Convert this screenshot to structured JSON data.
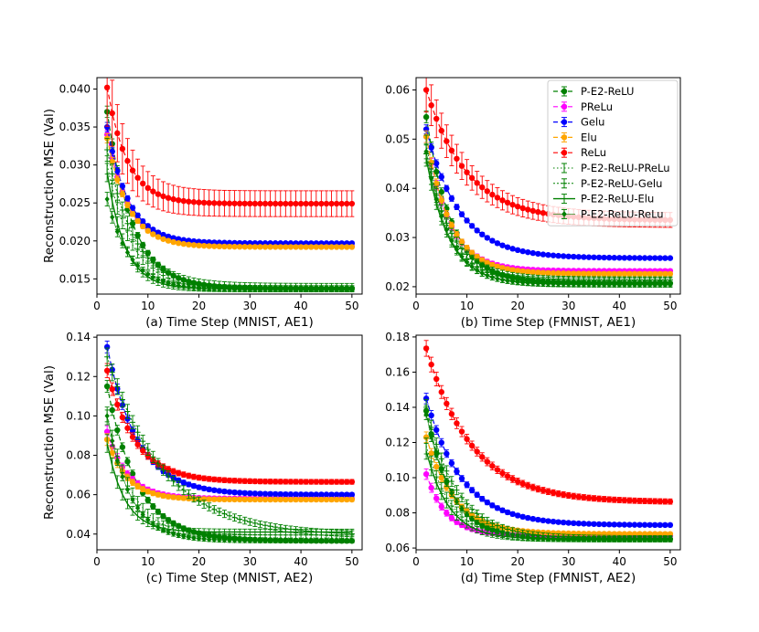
{
  "colors": {
    "P-E2-ReLU": "#008000",
    "PReLu": "#ff00ff",
    "Gelu": "#0000ff",
    "Elu": "#ffa500",
    "ReLu": "#ff0000",
    "P-E2-ReLU-PReLu": "#008000",
    "P-E2-ReLU-Gelu": "#008000",
    "P-E2-ReLU-Elu": "#008000",
    "P-E2-ReLU-ReLu": "#008000"
  },
  "legend": {
    "placement": "top-right of panel (b)",
    "entries": [
      "P-E2-ReLU",
      "PReLu",
      "Gelu",
      "Elu",
      "ReLu",
      "P-E2-ReLU-PReLu",
      "P-E2-ReLU-Gelu",
      "P-E2-ReLU-Elu",
      "P-E2-ReLU-ReLu"
    ]
  },
  "chart_data": [
    {
      "type": "line",
      "xlabel": "(a) Time Step (MNIST, AE1)",
      "ylabel": "Reconstruction MSE (Val)",
      "xlim": [
        0,
        52
      ],
      "ylim": [
        0.013,
        0.0415
      ],
      "xticks": [
        "0",
        "10",
        "20",
        "30",
        "40",
        "50"
      ],
      "yticks": [
        "0.015",
        "0.020",
        "0.025",
        "0.030",
        "0.035",
        "0.040"
      ],
      "xtick_values": [
        0,
        10,
        20,
        30,
        40,
        50
      ],
      "ytick_values": [
        0.015,
        0.02,
        0.025,
        0.03,
        0.035,
        0.04
      ],
      "x_range": [
        2,
        50
      ],
      "series": [
        {
          "name": "P-E2-ReLU",
          "start": 0.037,
          "end": 0.0137,
          "tau": 5.0,
          "err": 0.00025
        },
        {
          "name": "PReLu",
          "start": 0.034,
          "end": 0.0193,
          "tau": 4.2,
          "err": 0.0002
        },
        {
          "name": "Gelu",
          "start": 0.035,
          "end": 0.0197,
          "tau": 4.2,
          "err": 0.0002
        },
        {
          "name": "Elu",
          "start": 0.0335,
          "end": 0.0192,
          "tau": 4.2,
          "err": 0.0002
        },
        {
          "name": "ReLu",
          "start": 0.0402,
          "end": 0.0249,
          "tau": 4.0,
          "err": 0.0017
        },
        {
          "name": "P-E2-ReLU-PReLu",
          "start": 0.03,
          "end": 0.0137,
          "tau": 4.8,
          "err": 0.0004
        },
        {
          "name": "P-E2-ReLU-Gelu",
          "start": 0.032,
          "end": 0.0139,
          "tau": 5.2,
          "err": 0.0005
        },
        {
          "name": "P-E2-ReLU-Elu",
          "start": 0.029,
          "end": 0.0137,
          "tau": 3.5,
          "err": 0.0004
        },
        {
          "name": "P-E2-ReLU-ReLu",
          "start": 0.0255,
          "end": 0.0136,
          "tau": 4.5,
          "err": 0.0003
        }
      ]
    },
    {
      "type": "line",
      "xlabel": "(b) Time Step (FMNIST, AE1)",
      "ylabel": "",
      "xlim": [
        0,
        52
      ],
      "ylim": [
        0.0185,
        0.0625
      ],
      "xticks": [
        "0",
        "10",
        "20",
        "30",
        "40",
        "50"
      ],
      "yticks": [
        "0.02",
        "0.03",
        "0.04",
        "0.05",
        "0.06"
      ],
      "xtick_values": [
        0,
        10,
        20,
        30,
        40,
        50
      ],
      "ytick_values": [
        0.02,
        0.03,
        0.04,
        0.05,
        0.06
      ],
      "x_range": [
        2,
        50
      ],
      "series": [
        {
          "name": "P-E2-ReLU",
          "start": 0.0545,
          "end": 0.0207,
          "tau": 5.0,
          "err": 0.0004
        },
        {
          "name": "PReLu",
          "start": 0.0505,
          "end": 0.0232,
          "tau": 4.5,
          "err": 0.0004
        },
        {
          "name": "Gelu",
          "start": 0.052,
          "end": 0.0258,
          "tau": 6.5,
          "err": 0.0003
        },
        {
          "name": "Elu",
          "start": 0.0505,
          "end": 0.0226,
          "tau": 4.8,
          "err": 0.0004
        },
        {
          "name": "ReLu",
          "start": 0.06,
          "end": 0.0335,
          "tau": 8.0,
          "err": 0.0015
        },
        {
          "name": "P-E2-ReLU-PReLu",
          "start": 0.049,
          "end": 0.0212,
          "tau": 4.5,
          "err": 0.0006
        },
        {
          "name": "P-E2-ReLU-Gelu",
          "start": 0.047,
          "end": 0.0214,
          "tau": 5.0,
          "err": 0.0006
        },
        {
          "name": "P-E2-ReLU-Elu",
          "start": 0.046,
          "end": 0.0205,
          "tau": 4.5,
          "err": 0.0005
        },
        {
          "name": "P-E2-ReLU-ReLu",
          "start": 0.0475,
          "end": 0.0204,
          "tau": 4.5,
          "err": 0.0005
        }
      ]
    },
    {
      "type": "line",
      "xlabel": "(c) Time Step (MNIST, AE2)",
      "ylabel": "Reconstruction MSE (Val)",
      "xlim": [
        0,
        52
      ],
      "ylim": [
        0.032,
        0.141
      ],
      "xticks": [
        "0",
        "10",
        "20",
        "30",
        "40",
        "50"
      ],
      "yticks": [
        "0.04",
        "0.06",
        "0.08",
        "0.10",
        "0.12",
        "0.14"
      ],
      "xtick_values": [
        0,
        10,
        20,
        30,
        40,
        50
      ],
      "ytick_values": [
        0.04,
        0.06,
        0.08,
        0.1,
        0.12,
        0.14
      ],
      "x_range": [
        2,
        50
      ],
      "series": [
        {
          "name": "P-E2-ReLU",
          "start": 0.115,
          "end": 0.0365,
          "tau": 6.0,
          "err": 0.001
        },
        {
          "name": "PReLu",
          "start": 0.092,
          "end": 0.058,
          "tau": 4.0,
          "err": 0.001
        },
        {
          "name": "Gelu",
          "start": 0.135,
          "end": 0.06,
          "tau": 6.0,
          "err": 0.001
        },
        {
          "name": "Elu",
          "start": 0.088,
          "end": 0.0575,
          "tau": 4.0,
          "err": 0.001
        },
        {
          "name": "ReLu",
          "start": 0.123,
          "end": 0.0665,
          "tau": 5.5,
          "err": 0.0012
        },
        {
          "name": "P-E2-ReLU-PReLu",
          "start": 0.1,
          "end": 0.038,
          "tau": 5.0,
          "err": 0.0015
        },
        {
          "name": "P-E2-ReLU-Gelu",
          "start": 0.13,
          "end": 0.039,
          "tau": 11.0,
          "err": 0.0015
        },
        {
          "name": "P-E2-ReLU-Elu",
          "start": 0.086,
          "end": 0.041,
          "tau": 3.5,
          "err": 0.0015
        },
        {
          "name": "P-E2-ReLU-ReLu",
          "start": 0.1,
          "end": 0.0365,
          "tau": 4.5,
          "err": 0.001
        }
      ]
    },
    {
      "type": "line",
      "xlabel": "(d) Time Step (FMNIST, AE2)",
      "ylabel": "",
      "xlim": [
        0,
        52
      ],
      "ylim": [
        0.059,
        0.181
      ],
      "xticks": [
        "0",
        "10",
        "20",
        "30",
        "40",
        "50"
      ],
      "yticks": [
        "0.06",
        "0.08",
        "0.10",
        "0.12",
        "0.14",
        "0.16",
        "0.18"
      ],
      "xtick_values": [
        0,
        10,
        20,
        30,
        40,
        50
      ],
      "ytick_values": [
        0.06,
        0.08,
        0.1,
        0.12,
        0.14,
        0.16,
        0.18
      ],
      "x_range": [
        2,
        50
      ],
      "series": [
        {
          "name": "P-E2-ReLU",
          "start": 0.138,
          "end": 0.065,
          "tau": 5.0,
          "err": 0.001
        },
        {
          "name": "PReLu",
          "start": 0.102,
          "end": 0.067,
          "tau": 4.0,
          "err": 0.001
        },
        {
          "name": "Gelu",
          "start": 0.145,
          "end": 0.073,
          "tau": 7.0,
          "err": 0.001
        },
        {
          "name": "Elu",
          "start": 0.123,
          "end": 0.068,
          "tau": 5.5,
          "err": 0.001
        },
        {
          "name": "ReLu",
          "start": 0.1735,
          "end": 0.086,
          "tau": 9.0,
          "err": 0.0015
        },
        {
          "name": "P-E2-ReLU-PReLu",
          "start": 0.118,
          "end": 0.065,
          "tau": 5.0,
          "err": 0.0015
        },
        {
          "name": "P-E2-ReLU-Gelu",
          "start": 0.14,
          "end": 0.0655,
          "tau": 6.0,
          "err": 0.0015
        },
        {
          "name": "P-E2-ReLU-Elu",
          "start": 0.115,
          "end": 0.065,
          "tau": 4.5,
          "err": 0.0015
        },
        {
          "name": "P-E2-ReLU-ReLu",
          "start": 0.136,
          "end": 0.065,
          "tau": 5.0,
          "err": 0.001
        }
      ]
    }
  ]
}
